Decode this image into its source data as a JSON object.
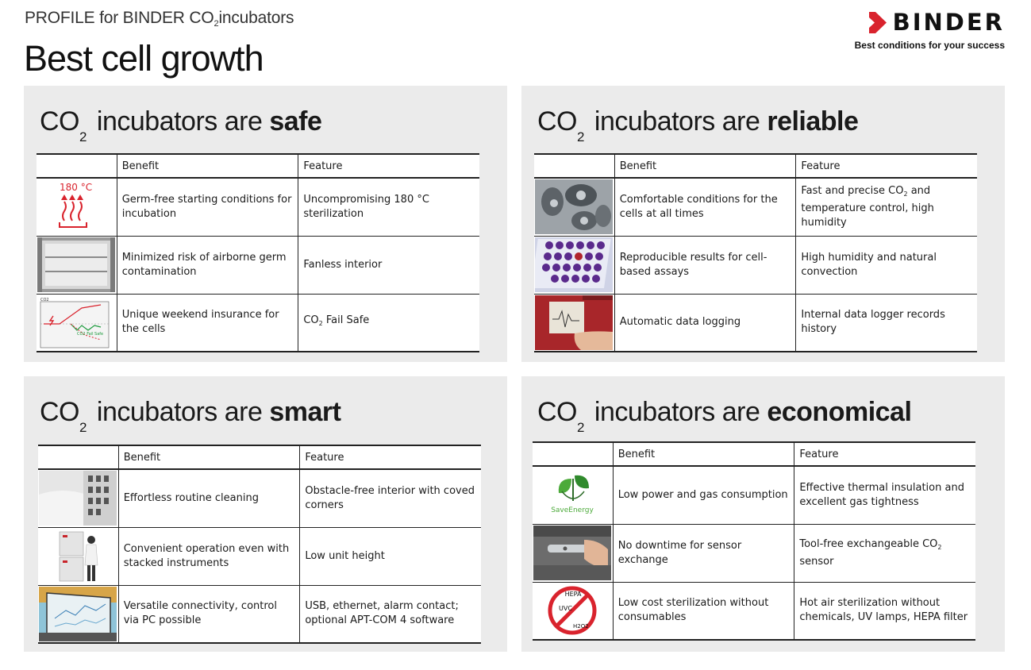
{
  "header": {
    "subtitle_prefix": "PROFILE for BINDER CO",
    "subtitle_sub": "2",
    "subtitle_suffix": "incubators",
    "title": "Best cell growth"
  },
  "brand": {
    "name": "BINDER",
    "tagline": "Best conditions for your success",
    "color": "#d9232d"
  },
  "panels": {
    "safe": {
      "title_prefix": "CO",
      "title_sub": "2",
      "title_mid": "incubators are",
      "title_bold": "safe",
      "col_benefit": "Benefit",
      "col_feature": "Feature",
      "rows": [
        {
          "icon": "heat-sterilization-icon",
          "icon_text": "180 °C",
          "benefit": "Germ-free starting conditions for incubation",
          "feature": "Uncompromising 180 °C sterilization"
        },
        {
          "icon": "chamber-interior-photo",
          "benefit": "Minimized risk of airborne germ contamination",
          "feature": "Fanless interior"
        },
        {
          "icon": "co2-fail-safe-chart-icon",
          "icon_label_axis": "CO2",
          "icon_label_line": "CO2 Fail Safe",
          "benefit": "Unique weekend insurance for the cells",
          "feature_prefix": "CO",
          "feature_sub": "2",
          "feature_suffix": "Fail Safe"
        }
      ]
    },
    "reliable": {
      "title_prefix": "CO",
      "title_sub": "2",
      "title_mid": "incubators are",
      "title_bold": "reliable",
      "col_benefit": "Benefit",
      "col_feature": "Feature",
      "rows": [
        {
          "icon": "cells-micrograph-photo",
          "benefit": "Comfortable conditions for the cells at all times",
          "feature_prefix": "Fast and precise CO",
          "feature_sub": "2",
          "feature_suffix": "and temperature control, high humidity"
        },
        {
          "icon": "well-plate-photo",
          "benefit": "Reproducible results for cell-based assays",
          "feature": "High humidity and natural convection"
        },
        {
          "icon": "data-logging-photo",
          "benefit": "Automatic data logging",
          "feature": "Internal data logger records history"
        }
      ]
    },
    "smart": {
      "title_prefix": "CO",
      "title_sub": "2",
      "title_mid": "incubators are",
      "title_bold": "smart",
      "col_benefit": "Benefit",
      "col_feature": "Feature",
      "rows": [
        {
          "icon": "shelf-rack-photo",
          "benefit": "Effortless routine cleaning",
          "feature": "Obstacle-free interior with coved corners"
        },
        {
          "icon": "stacked-incubators-photo",
          "benefit": "Convenient operation even with stacked instruments",
          "feature": "Low unit height"
        },
        {
          "icon": "laptop-software-photo",
          "benefit": "Versatile connectivity, control via PC possible",
          "feature": "USB, ethernet, alarm contact; optional APT-COM 4 software"
        }
      ]
    },
    "economical": {
      "title_prefix": "CO",
      "title_sub": "2",
      "title_mid": "incubators are",
      "title_bold": "economical",
      "col_benefit": "Benefit",
      "col_feature": "Feature",
      "rows": [
        {
          "icon": "save-energy-icon",
          "icon_text": "SaveEnergy",
          "benefit": "Low power and gas consumption",
          "feature": "Effective thermal insulation and excellent gas tightness"
        },
        {
          "icon": "sensor-exchange-photo",
          "benefit": "No downtime for sensor exchange",
          "feature_prefix": "Tool-free exchangeable CO",
          "feature_sub": "2",
          "feature_suffix": "sensor"
        },
        {
          "icon": "no-consumables-icon",
          "icon_text_1": "HEPA",
          "icon_text_2": "UVC",
          "icon_text_3": "H2O2",
          "benefit": "Low cost sterilization without consumables",
          "feature": "Hot air sterilization without chemicals, UV lamps, HEPA filter"
        }
      ]
    }
  }
}
